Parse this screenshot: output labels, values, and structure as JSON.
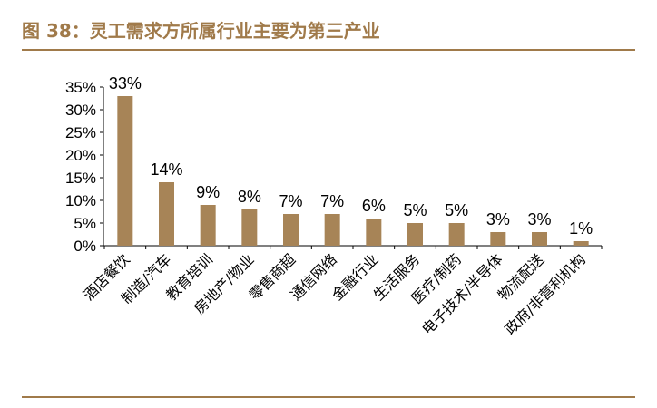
{
  "figure": {
    "label": "图 38：",
    "title": "灵工需求方所属行业主要为第三产业"
  },
  "colors": {
    "bar": "#a78457",
    "accent": "#a07a4a",
    "axis": "#000000"
  },
  "chart_data": {
    "type": "bar",
    "categories": [
      "酒店餐饮",
      "制造/汽车",
      "教育培训",
      "房地产/物业",
      "零售商超",
      "通信网络",
      "金融行业",
      "生活服务",
      "医疗/制药",
      "电子技术/半导体",
      "物流配送",
      "政府/非营利机构"
    ],
    "values": [
      33,
      14,
      9,
      8,
      7,
      7,
      6,
      5,
      5,
      3,
      3,
      1
    ],
    "data_labels": [
      "33%",
      "14%",
      "9%",
      "8%",
      "7%",
      "7%",
      "6%",
      "5%",
      "5%",
      "3%",
      "3%",
      "1%"
    ],
    "ylim": [
      0,
      35
    ],
    "yticks": [
      "0%",
      "5%",
      "10%",
      "15%",
      "20%",
      "25%",
      "30%",
      "35%"
    ],
    "ytick_values": [
      0,
      5,
      10,
      15,
      20,
      25,
      30,
      35
    ],
    "grid": false,
    "legend": "none"
  }
}
